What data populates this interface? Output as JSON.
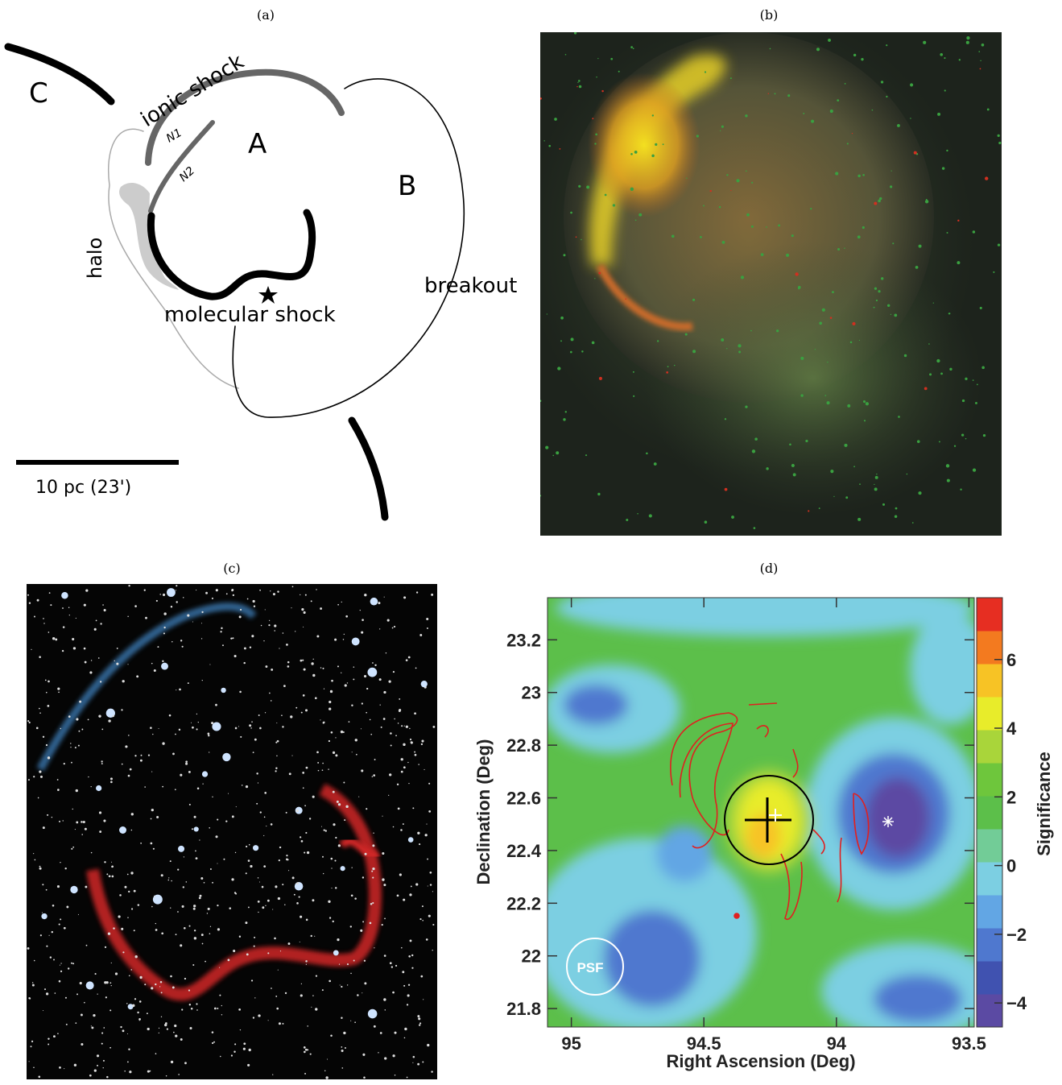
{
  "panels": [
    {
      "label": "(a)",
      "texts": {
        "C": "C",
        "ionic": "ionic shock",
        "A": "A",
        "B": "B",
        "N1": "N1",
        "N2": "N2",
        "halo": "halo",
        "breakout": "breakout",
        "molecular": "molecular shock",
        "scale": "10 pc (23')"
      }
    },
    {
      "label": "(b)"
    },
    {
      "label": "(c)"
    },
    {
      "label": "(d)"
    }
  ],
  "chart_data": {
    "type": "heatmap",
    "xlabel": "Right Ascension (Deg)",
    "ylabel": "Declination (Deg)",
    "colorbar_label": "Significance",
    "xlim": [
      95.09,
      93.48
    ],
    "xticks": [
      95,
      94.5,
      94,
      93.5
    ],
    "ylim": [
      21.73,
      23.36
    ],
    "yticks": [
      21.8,
      22,
      22.2,
      22.4,
      22.6,
      22.8,
      23,
      23.2
    ],
    "clim": [
      -4.7,
      7.8
    ],
    "cticks": [
      {
        "value": -4,
        "label": "−4"
      },
      {
        "value": -2,
        "label": "−2"
      },
      0,
      2,
      4,
      6
    ],
    "colormap": [
      "#5b4aa3",
      "#4052b0",
      "#4f78cf",
      "#62a6e4",
      "#7ccfe2",
      "#72cc97",
      "#5cbf4a",
      "#6ec63c",
      "#a9d53a",
      "#e8ec2a",
      "#f7c325",
      "#f37a1f",
      "#e62e22"
    ],
    "annotation": "PSF"
  }
}
